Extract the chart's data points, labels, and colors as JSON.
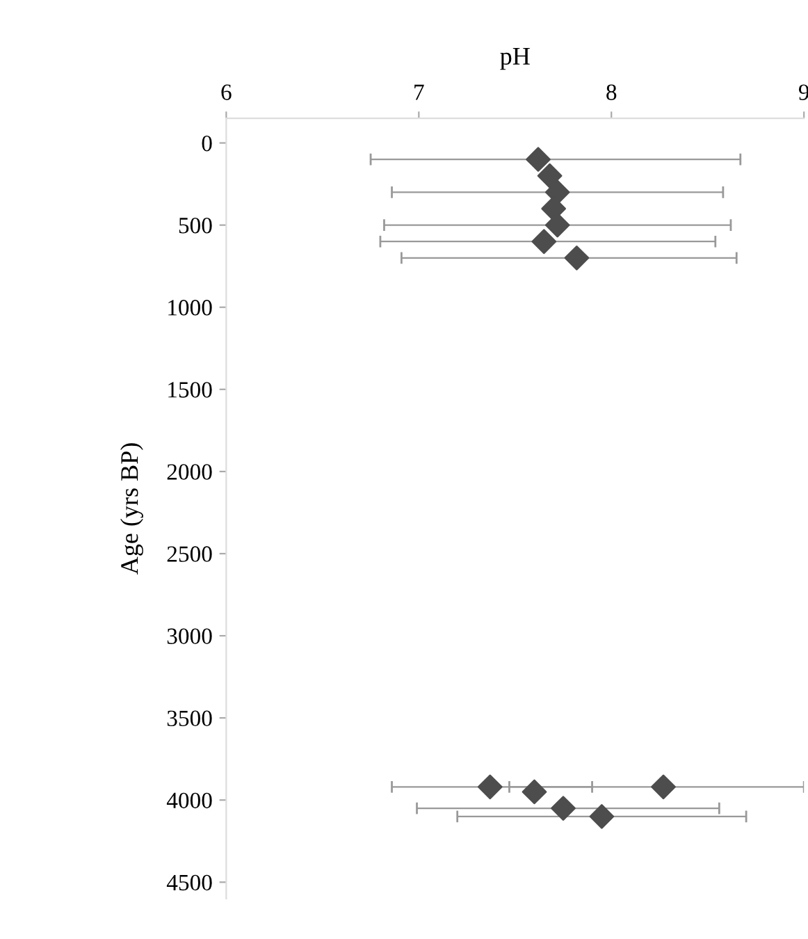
{
  "chart_data": {
    "type": "scatter",
    "xlabel": "pH",
    "ylabel": "Age (yrs BP)",
    "series": [
      {
        "color": "#4d4d4d",
        "x": [
          7.62,
          7.68,
          7.72,
          7.7,
          7.72,
          7.65,
          7.82,
          7.37,
          7.6,
          8.27,
          7.75,
          7.95
        ],
        "values": [
          100,
          200,
          300,
          400,
          500,
          600,
          700,
          3920,
          3950,
          3920,
          4050,
          4100
        ],
        "xerrors": [
          [
            6.75,
            8.67
          ],
          null,
          [
            6.86,
            8.58
          ],
          null,
          [
            6.82,
            8.62
          ],
          [
            6.8,
            8.54
          ],
          [
            6.91,
            8.65
          ],
          [
            6.86,
            7.9
          ],
          null,
          [
            7.47,
            9.0
          ],
          [
            6.99,
            8.56
          ],
          [
            7.2,
            8.7
          ]
        ]
      }
    ],
    "xlim": [
      6,
      9
    ],
    "xticks": [
      6,
      7,
      8,
      9
    ],
    "ylim": [
      4600,
      -150
    ],
    "yticks": [
      0,
      500,
      1000,
      1500,
      2000,
      2500,
      3000,
      3500,
      4000,
      4500
    ],
    "marker": "diamond",
    "grid": false,
    "legend": false
  }
}
